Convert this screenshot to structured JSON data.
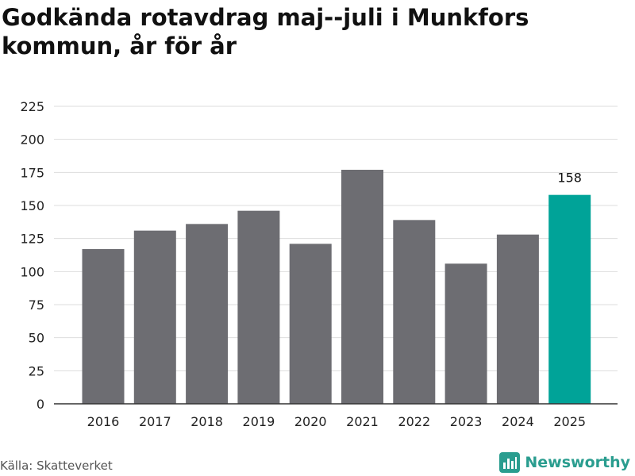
{
  "title": "Godkända rotavdrag maj--juli i Munkfors kommun, år för år",
  "source": "Källa: Skatteverket",
  "brand": {
    "name": "Newsworthy",
    "icon": "newsworthy-logo-icon"
  },
  "colors": {
    "bar": "#6d6d72",
    "highlight": "#00a398",
    "grid": "#dddddd",
    "axis": "#333333",
    "brand": "#2a9d8f"
  },
  "chart_data": {
    "type": "bar",
    "categories": [
      "2016",
      "2017",
      "2018",
      "2019",
      "2020",
      "2021",
      "2022",
      "2023",
      "2024",
      "2025"
    ],
    "values": [
      117,
      131,
      136,
      146,
      121,
      177,
      139,
      106,
      128,
      158
    ],
    "highlight_index": 9,
    "data_labels": [
      {
        "index": 9,
        "text": "158"
      }
    ],
    "title": "Godkända rotavdrag maj--juli i Munkfors kommun, år för år",
    "xlabel": "",
    "ylabel": "",
    "ylim": [
      0,
      225
    ],
    "yticks": [
      0,
      25,
      50,
      75,
      100,
      125,
      150,
      175,
      200,
      225
    ],
    "grid": true,
    "legend": "none"
  }
}
